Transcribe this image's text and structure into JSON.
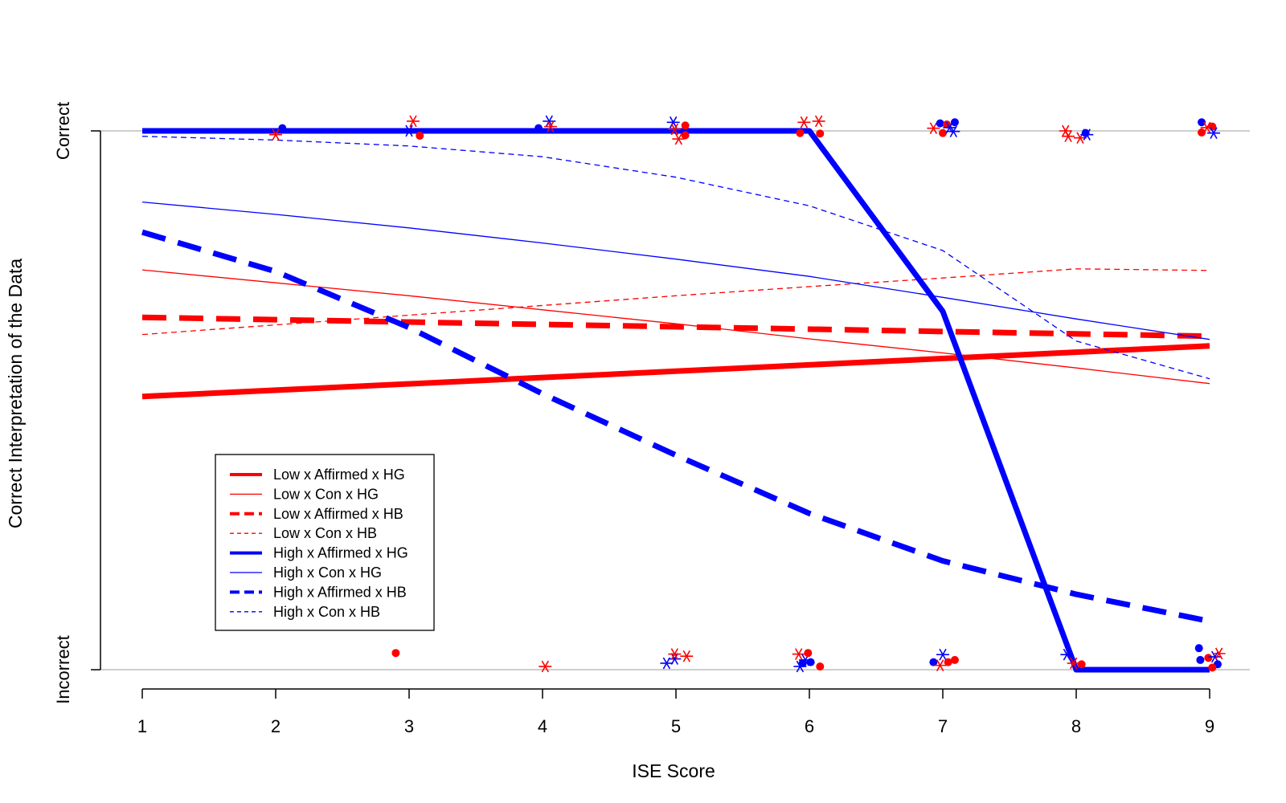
{
  "chart_data": {
    "type": "line",
    "title": "",
    "xlabel": "ISE Score",
    "ylabel": "Correct Interpretation of the Data",
    "x_ticks": [
      1,
      2,
      3,
      4,
      5,
      6,
      7,
      8,
      9
    ],
    "xlim": [
      1,
      9
    ],
    "ylim": [
      0,
      1
    ],
    "y_ticks": [
      {
        "value": 0,
        "label": "Incorrect"
      },
      {
        "value": 1,
        "label": "Correct"
      }
    ],
    "reference_lines": [
      0,
      1
    ],
    "reference_line_color": "#bebebe",
    "grid": false,
    "legend_position": "bottom-left",
    "series": [
      {
        "name": "Low x Affirmed x HG",
        "color": "#ff0000",
        "style": "solid",
        "weight": "thick",
        "x": [
          1,
          9
        ],
        "y": [
          0.507,
          0.601
        ]
      },
      {
        "name": "Low x Con x HG",
        "color": "#ff0000",
        "style": "solid",
        "weight": "thin",
        "x": [
          1,
          2,
          3,
          4,
          5,
          6,
          7,
          8,
          9
        ],
        "y": [
          0.742,
          0.718,
          0.694,
          0.668,
          0.642,
          0.614,
          0.588,
          0.56,
          0.531
        ]
      },
      {
        "name": "Low x Affirmed x HB",
        "color": "#ff0000",
        "style": "dashed",
        "weight": "thick",
        "x": [
          1,
          9
        ],
        "y": [
          0.654,
          0.619
        ]
      },
      {
        "name": "Low x Con x HB",
        "color": "#ff0000",
        "style": "dashed",
        "weight": "thin",
        "x": [
          1,
          2,
          3,
          4,
          5,
          6,
          7,
          8,
          9
        ],
        "y": [
          0.622,
          0.64,
          0.658,
          0.676,
          0.694,
          0.711,
          0.727,
          0.744,
          0.741
        ]
      },
      {
        "name": "High x Affirmed x HG",
        "color": "#0000ff",
        "style": "solid",
        "weight": "thick",
        "x": [
          1,
          2,
          3,
          4,
          5,
          6,
          7,
          8,
          9
        ],
        "y": [
          1.0,
          1.0,
          1.0,
          1.0,
          1.0,
          1.0,
          0.665,
          0.0,
          0.0
        ]
      },
      {
        "name": "High x Con x HG",
        "color": "#0000ff",
        "style": "solid",
        "weight": "thin",
        "x": [
          1,
          2,
          3,
          4,
          5,
          6,
          7,
          8,
          9
        ],
        "y": [
          0.868,
          0.845,
          0.82,
          0.792,
          0.762,
          0.73,
          0.691,
          0.651,
          0.613
        ]
      },
      {
        "name": "High x Affirmed x HB",
        "color": "#0000ff",
        "style": "dashed",
        "weight": "thick",
        "x": [
          1,
          2,
          3,
          4,
          5,
          6,
          7,
          8,
          9
        ],
        "y": [
          0.812,
          0.739,
          0.635,
          0.512,
          0.398,
          0.29,
          0.202,
          0.14,
          0.09
        ]
      },
      {
        "name": "High x Con x HB",
        "color": "#0000ff",
        "style": "dashed",
        "weight": "thin",
        "x": [
          1,
          2,
          3,
          4,
          5,
          6,
          7,
          8,
          9
        ],
        "y": [
          0.99,
          0.983,
          0.972,
          0.952,
          0.914,
          0.861,
          0.778,
          0.61,
          0.54
        ]
      }
    ],
    "points": [
      {
        "x": 2.05,
        "y": 1.005,
        "color": "#0000ff",
        "shape": "dot"
      },
      {
        "x": 2.0,
        "y": 0.993,
        "color": "#ff0000",
        "shape": "star"
      },
      {
        "x": 3.03,
        "y": 1.018,
        "color": "#ff0000",
        "shape": "star"
      },
      {
        "x": 3.08,
        "y": 0.991,
        "color": "#ff0000",
        "shape": "dot"
      },
      {
        "x": 3.0,
        "y": 1.0,
        "color": "#0000ff",
        "shape": "star"
      },
      {
        "x": 3.97,
        "y": 1.005,
        "color": "#0000ff",
        "shape": "dot"
      },
      {
        "x": 4.05,
        "y": 1.018,
        "color": "#0000ff",
        "shape": "star"
      },
      {
        "x": 4.06,
        "y": 1.008,
        "color": "#ff0000",
        "shape": "star"
      },
      {
        "x": 4.98,
        "y": 1.016,
        "color": "#0000ff",
        "shape": "star"
      },
      {
        "x": 4.99,
        "y": 1.003,
        "color": "#ff0000",
        "shape": "star"
      },
      {
        "x": 5.02,
        "y": 0.985,
        "color": "#ff0000",
        "shape": "star"
      },
      {
        "x": 5.07,
        "y": 1.01,
        "color": "#ff0000",
        "shape": "dot"
      },
      {
        "x": 5.07,
        "y": 0.992,
        "color": "#ff0000",
        "shape": "dot"
      },
      {
        "x": 5.96,
        "y": 1.016,
        "color": "#ff0000",
        "shape": "star"
      },
      {
        "x": 5.93,
        "y": 0.996,
        "color": "#ff0000",
        "shape": "dot"
      },
      {
        "x": 6.07,
        "y": 1.018,
        "color": "#ff0000",
        "shape": "star"
      },
      {
        "x": 6.08,
        "y": 0.995,
        "color": "#ff0000",
        "shape": "dot"
      },
      {
        "x": 6.93,
        "y": 1.005,
        "color": "#ff0000",
        "shape": "star"
      },
      {
        "x": 6.98,
        "y": 1.014,
        "color": "#0000ff",
        "shape": "dot"
      },
      {
        "x": 7.0,
        "y": 0.996,
        "color": "#ff0000",
        "shape": "dot"
      },
      {
        "x": 7.03,
        "y": 1.012,
        "color": "#ff0000",
        "shape": "dot"
      },
      {
        "x": 7.05,
        "y": 1.006,
        "color": "#0000ff",
        "shape": "star"
      },
      {
        "x": 7.09,
        "y": 1.016,
        "color": "#0000ff",
        "shape": "dot"
      },
      {
        "x": 7.08,
        "y": 0.999,
        "color": "#0000ff",
        "shape": "star"
      },
      {
        "x": 7.92,
        "y": 1.0,
        "color": "#ff0000",
        "shape": "star"
      },
      {
        "x": 7.94,
        "y": 0.99,
        "color": "#ff0000",
        "shape": "star"
      },
      {
        "x": 8.03,
        "y": 0.987,
        "color": "#ff0000",
        "shape": "star"
      },
      {
        "x": 8.07,
        "y": 0.996,
        "color": "#0000ff",
        "shape": "dot"
      },
      {
        "x": 8.08,
        "y": 0.993,
        "color": "#0000ff",
        "shape": "star"
      },
      {
        "x": 8.94,
        "y": 1.016,
        "color": "#0000ff",
        "shape": "dot"
      },
      {
        "x": 8.94,
        "y": 0.997,
        "color": "#ff0000",
        "shape": "dot"
      },
      {
        "x": 8.98,
        "y": 1.006,
        "color": "#ff0000",
        "shape": "star"
      },
      {
        "x": 9.02,
        "y": 1.008,
        "color": "#ff0000",
        "shape": "dot"
      },
      {
        "x": 9.03,
        "y": 0.996,
        "color": "#0000ff",
        "shape": "star"
      },
      {
        "x": 2.9,
        "y": 0.031,
        "color": "#ff0000",
        "shape": "dot"
      },
      {
        "x": 4.02,
        "y": 0.006,
        "color": "#ff0000",
        "shape": "star"
      },
      {
        "x": 4.93,
        "y": 0.012,
        "color": "#0000ff",
        "shape": "star"
      },
      {
        "x": 4.99,
        "y": 0.02,
        "color": "#0000ff",
        "shape": "star"
      },
      {
        "x": 4.99,
        "y": 0.029,
        "color": "#ff0000",
        "shape": "star"
      },
      {
        "x": 5.08,
        "y": 0.025,
        "color": "#ff0000",
        "shape": "star"
      },
      {
        "x": 5.92,
        "y": 0.029,
        "color": "#ff0000",
        "shape": "star"
      },
      {
        "x": 5.95,
        "y": 0.012,
        "color": "#0000ff",
        "shape": "dot"
      },
      {
        "x": 5.97,
        "y": 0.018,
        "color": "#0000ff",
        "shape": "star"
      },
      {
        "x": 5.99,
        "y": 0.031,
        "color": "#ff0000",
        "shape": "dot"
      },
      {
        "x": 6.01,
        "y": 0.014,
        "color": "#0000ff",
        "shape": "dot"
      },
      {
        "x": 5.93,
        "y": 0.006,
        "color": "#0000ff",
        "shape": "star"
      },
      {
        "x": 6.08,
        "y": 0.006,
        "color": "#ff0000",
        "shape": "dot"
      },
      {
        "x": 6.93,
        "y": 0.014,
        "color": "#0000ff",
        "shape": "dot"
      },
      {
        "x": 7.0,
        "y": 0.028,
        "color": "#0000ff",
        "shape": "star"
      },
      {
        "x": 6.98,
        "y": 0.008,
        "color": "#ff0000",
        "shape": "star"
      },
      {
        "x": 7.04,
        "y": 0.014,
        "color": "#ff0000",
        "shape": "dot"
      },
      {
        "x": 7.09,
        "y": 0.018,
        "color": "#ff0000",
        "shape": "dot"
      },
      {
        "x": 7.93,
        "y": 0.028,
        "color": "#0000ff",
        "shape": "star"
      },
      {
        "x": 7.98,
        "y": 0.012,
        "color": "#ff0000",
        "shape": "star"
      },
      {
        "x": 8.04,
        "y": 0.01,
        "color": "#ff0000",
        "shape": "dot"
      },
      {
        "x": 8.92,
        "y": 0.04,
        "color": "#0000ff",
        "shape": "dot"
      },
      {
        "x": 8.93,
        "y": 0.018,
        "color": "#0000ff",
        "shape": "dot"
      },
      {
        "x": 8.99,
        "y": 0.022,
        "color": "#ff0000",
        "shape": "dot"
      },
      {
        "x": 9.04,
        "y": 0.024,
        "color": "#0000ff",
        "shape": "star"
      },
      {
        "x": 9.07,
        "y": 0.03,
        "color": "#ff0000",
        "shape": "star"
      },
      {
        "x": 9.06,
        "y": 0.01,
        "color": "#0000ff",
        "shape": "dot"
      },
      {
        "x": 9.02,
        "y": 0.004,
        "color": "#ff0000",
        "shape": "dot"
      }
    ]
  }
}
